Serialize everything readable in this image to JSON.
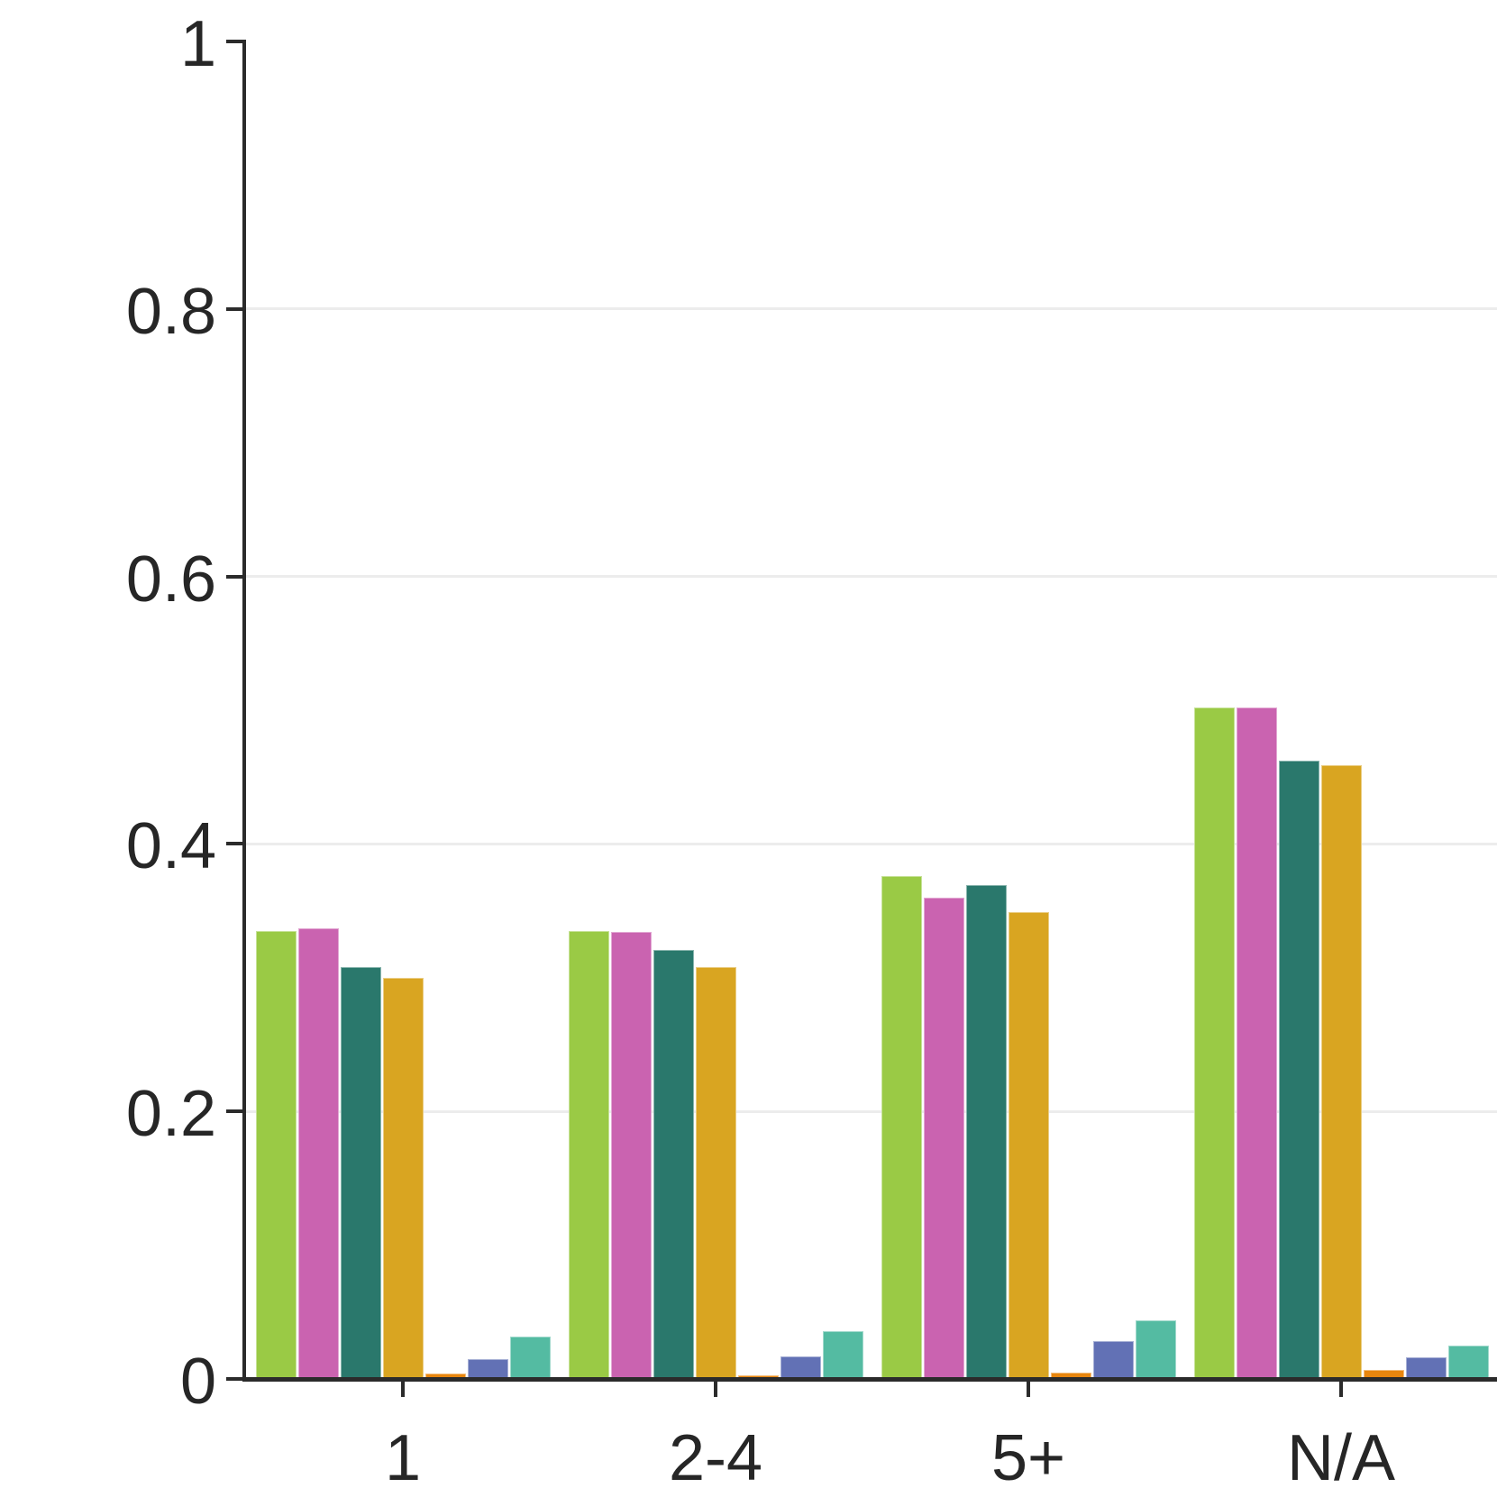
{
  "figure": {
    "background": "#ffffff",
    "axis_color": "#2b2b2b",
    "grid_color": "#ececec",
    "text_color": "#262626"
  },
  "chart_data": {
    "type": "bar",
    "title": "",
    "xlabel": "",
    "ylabel": "",
    "categories": [
      "1",
      "2-4",
      "5+",
      "N/A"
    ],
    "series": [
      {
        "name": "yellow-green",
        "color": "#9aca45",
        "values": [
          0.335,
          0.335,
          0.376,
          0.502
        ]
      },
      {
        "name": "magenta",
        "color": "#ca63b0",
        "values": [
          0.337,
          0.334,
          0.36,
          0.502
        ]
      },
      {
        "name": "dark-teal",
        "color": "#2a786c",
        "values": [
          0.308,
          0.321,
          0.369,
          0.462
        ]
      },
      {
        "name": "gold",
        "color": "#d9a521",
        "values": [
          0.3,
          0.308,
          0.349,
          0.459
        ]
      },
      {
        "name": "orange",
        "color": "#e8860e",
        "values": [
          0.004,
          0.003,
          0.005,
          0.007
        ]
      },
      {
        "name": "blue-purple",
        "color": "#6271b5",
        "values": [
          0.015,
          0.017,
          0.028,
          0.016
        ]
      },
      {
        "name": "mint",
        "color": "#54bba2",
        "values": [
          0.032,
          0.036,
          0.044,
          0.025
        ]
      }
    ],
    "ylim": [
      0,
      1
    ],
    "yticks": [
      0,
      0.2,
      0.4,
      0.6,
      0.8,
      1
    ],
    "ytick_labels": [
      "0",
      "0.2",
      "0.4",
      "0.6",
      "0.8",
      "1"
    ],
    "grid_yticks": [
      0.2,
      0.4,
      0.6,
      0.8
    ],
    "grid": "horizontal",
    "legend": "none"
  }
}
